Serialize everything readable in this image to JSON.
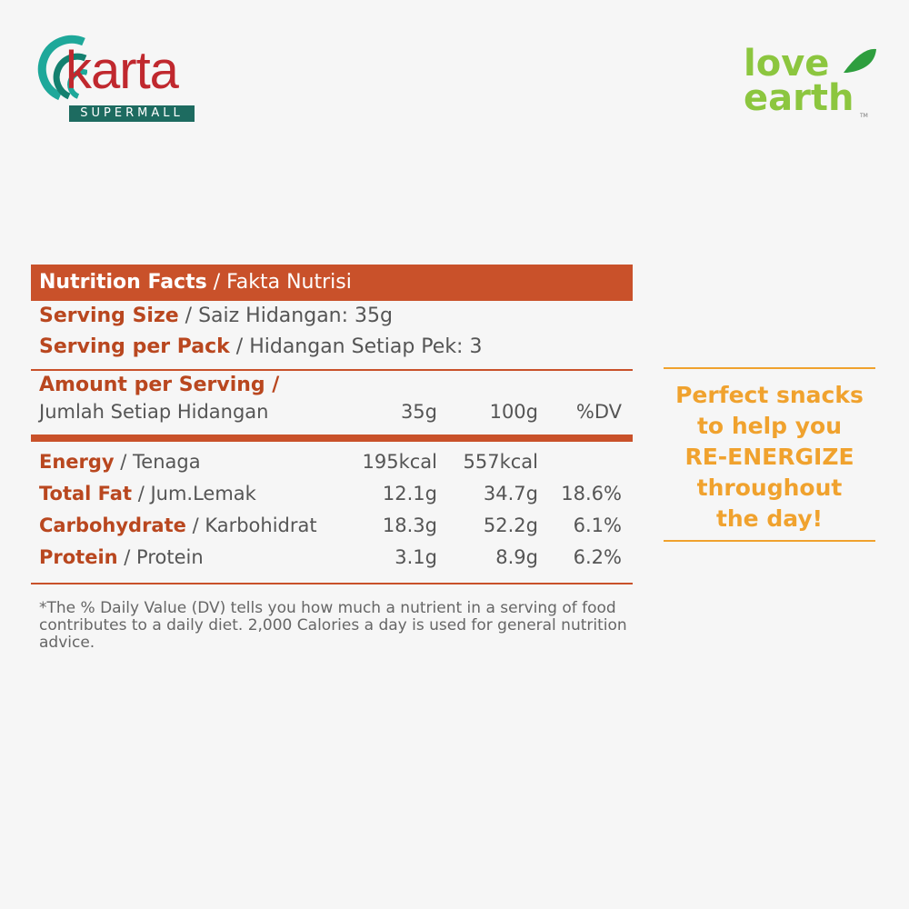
{
  "logos": {
    "left": {
      "brand": "karta",
      "sub": "SUPERMALL"
    },
    "right": {
      "line1": "love",
      "line2": "earth",
      "tm": "TM"
    }
  },
  "colors": {
    "accent": "#c9512a",
    "tagline": "#f0a22e",
    "karta_red": "#c0282e",
    "karta_teal": "#1ea89a",
    "green": "#7cc242"
  },
  "header": {
    "title_bold": "Nutrition Facts",
    "title_rest": " / Fakta Nutrisi"
  },
  "serving_size": {
    "label_bold": "Serving Size",
    "label_rest": " / Saiz Hidangan:  35g"
  },
  "serving_pack": {
    "label_bold": "Serving per Pack",
    "label_rest": " / Hidangan Setiap Pek: 3"
  },
  "amount": {
    "bold": "Amount per Serving /",
    "rest": "Jumlah Setiap Hidangan"
  },
  "columns": [
    "35g",
    "100g",
    "%DV"
  ],
  "rows": [
    {
      "bold": "Energy",
      "rest": " / Tenaga",
      "v35": "195kcal",
      "v100": "557kcal",
      "dv": ""
    },
    {
      "bold": "Total Fat",
      "rest": " / Jum.Lemak",
      "v35": "12.1g",
      "v100": "34.7g",
      "dv": "18.6%"
    },
    {
      "bold": "Carbohydrate",
      "rest": " / Karbohidrat",
      "v35": "18.3g",
      "v100": "52.2g",
      "dv": "6.1%"
    },
    {
      "bold": "Protein",
      "rest": " / Protein",
      "v35": "3.1g",
      "v100": "8.9g",
      "dv": "6.2%"
    }
  ],
  "footnote": "*The % Daily Value (DV) tells you how much a nutrient in a serving of food contributes to a daily diet. 2,000 Calories a day is used for general nutrition advice.",
  "tagline": [
    "Perfect snacks",
    "to help you",
    "RE-ENERGIZE",
    "throughout",
    "the day!"
  ]
}
